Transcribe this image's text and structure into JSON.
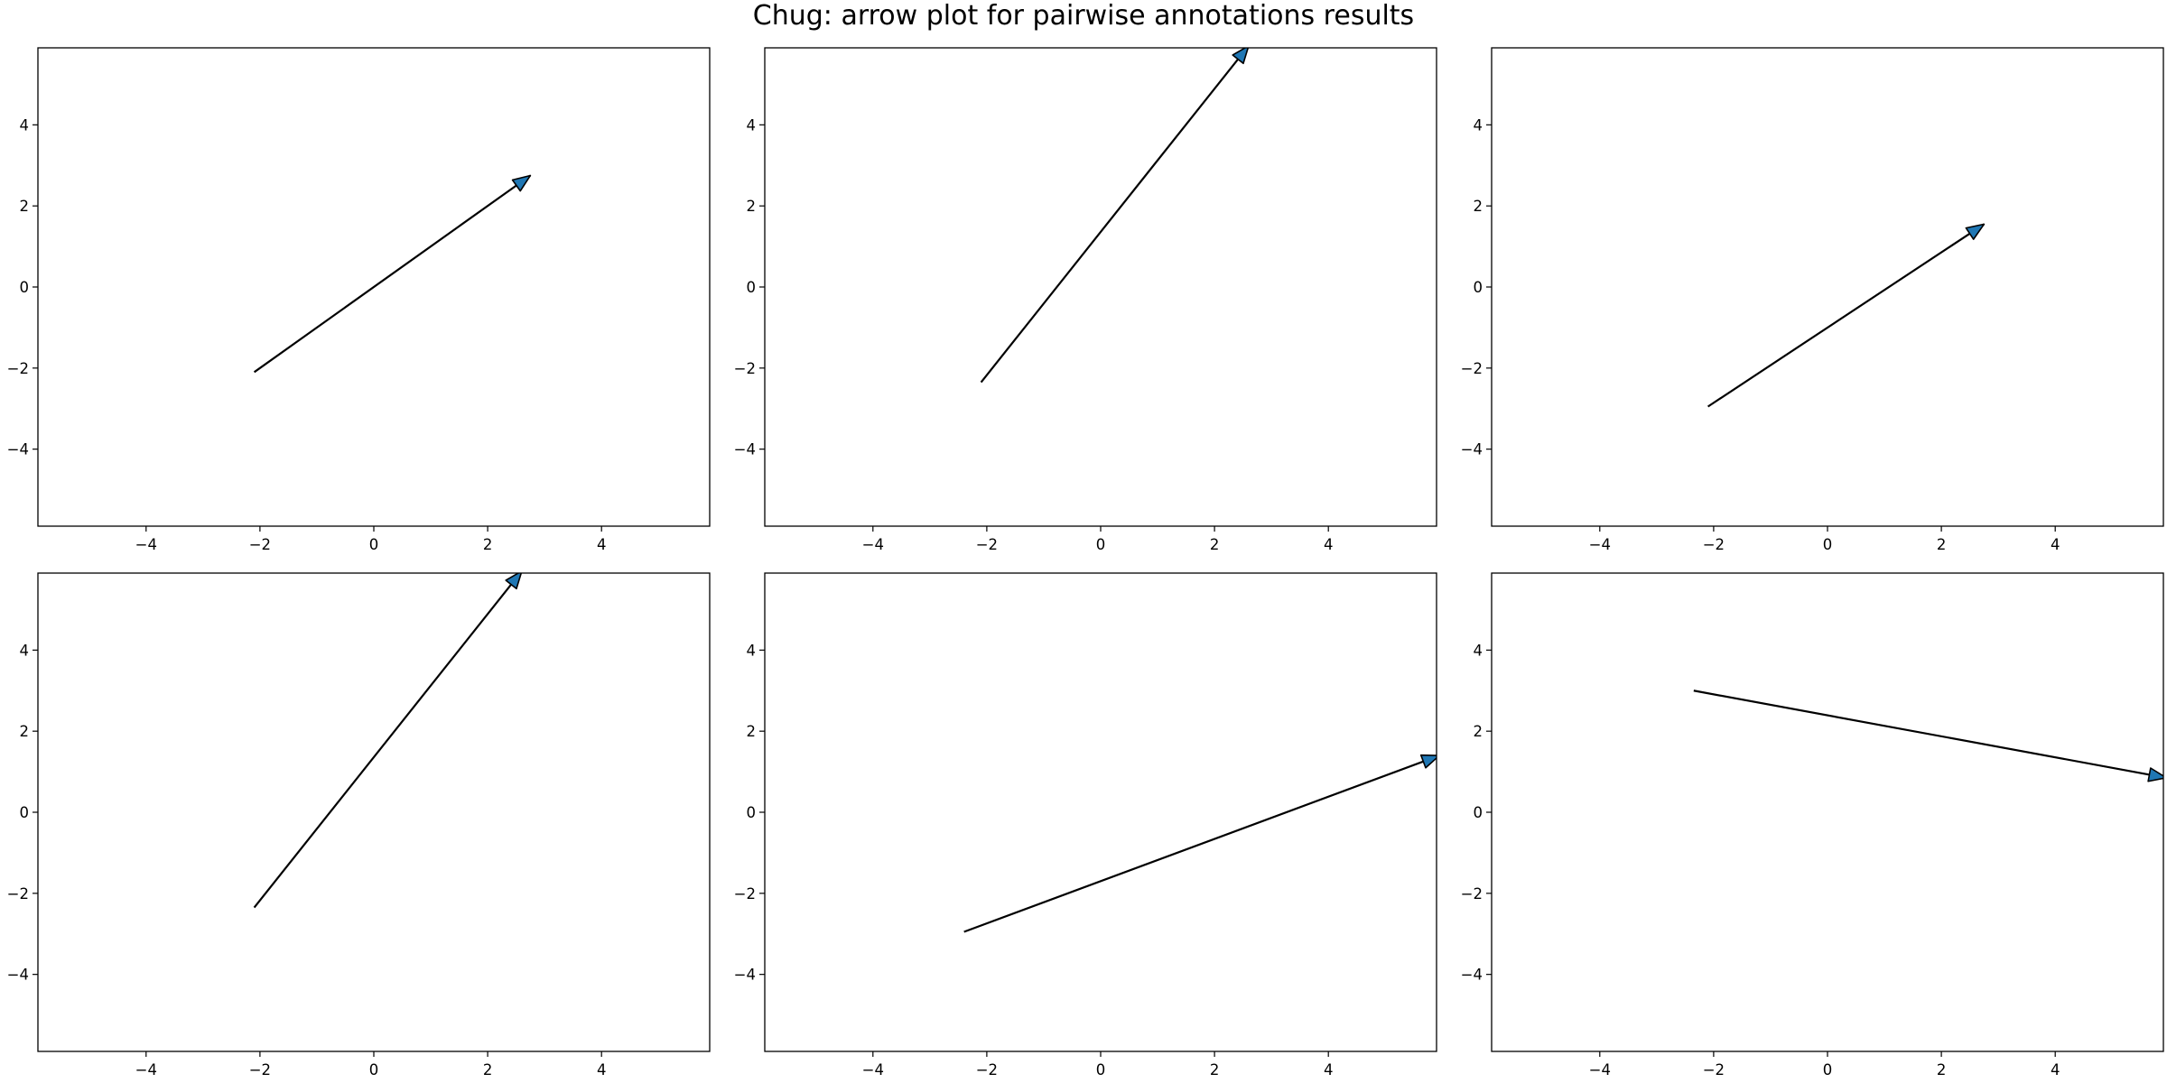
{
  "title": "Chug: arrow plot for pairwise annotations results",
  "chart_data": [
    {
      "type": "arrow",
      "title": "",
      "xlabel": "",
      "ylabel": "",
      "xlim": [
        -5.9,
        5.9
      ],
      "ylim": [
        -5.9,
        5.9
      ],
      "xticks": [
        "−4",
        "−2",
        "0",
        "2",
        "4"
      ],
      "yticks": [
        "4",
        "2",
        "0",
        "−2",
        "−4"
      ],
      "grid": false,
      "arrow": {
        "start": [
          -2.1,
          -2.1
        ],
        "end": [
          2.75,
          2.75
        ],
        "head_visible": true
      }
    },
    {
      "type": "arrow",
      "title": "",
      "xlabel": "",
      "ylabel": "",
      "xlim": [
        -5.9,
        5.9
      ],
      "ylim": [
        -5.9,
        5.9
      ],
      "xticks": [
        "−4",
        "−2",
        "0",
        "2",
        "4"
      ],
      "yticks": [
        "4",
        "2",
        "0",
        "−2",
        "−4"
      ],
      "grid": false,
      "arrow": {
        "start": [
          -2.1,
          -2.35
        ],
        "end": [
          2.6,
          5.95
        ],
        "head_visible": false
      }
    },
    {
      "type": "arrow",
      "title": "",
      "xlabel": "",
      "ylabel": "",
      "xlim": [
        -5.9,
        5.9
      ],
      "ylim": [
        -5.9,
        5.9
      ],
      "xticks": [
        "−4",
        "−2",
        "0",
        "2",
        "4"
      ],
      "yticks": [
        "4",
        "2",
        "0",
        "−2",
        "−4"
      ],
      "grid": false,
      "arrow": {
        "start": [
          -2.1,
          -2.95
        ],
        "end": [
          2.75,
          1.55
        ],
        "head_visible": true
      }
    },
    {
      "type": "arrow",
      "title": "",
      "xlabel": "",
      "ylabel": "",
      "xlim": [
        -5.9,
        5.9
      ],
      "ylim": [
        -5.9,
        5.9
      ],
      "xticks": [
        "−4",
        "−2",
        "0",
        "2",
        "4"
      ],
      "yticks": [
        "4",
        "2",
        "0",
        "−2",
        "−4"
      ],
      "grid": false,
      "arrow": {
        "start": [
          -2.1,
          -2.35
        ],
        "end": [
          2.6,
          5.95
        ],
        "head_visible": false
      }
    },
    {
      "type": "arrow",
      "title": "",
      "xlabel": "",
      "ylabel": "",
      "xlim": [
        -5.9,
        5.9
      ],
      "ylim": [
        -5.9,
        5.9
      ],
      "xticks": [
        "−4",
        "−2",
        "0",
        "2",
        "4"
      ],
      "yticks": [
        "4",
        "2",
        "0",
        "−2",
        "−4"
      ],
      "grid": false,
      "arrow": {
        "start": [
          -2.4,
          -2.95
        ],
        "end": [
          5.95,
          1.4
        ],
        "head_visible": false
      }
    },
    {
      "type": "arrow",
      "title": "",
      "xlabel": "",
      "ylabel": "",
      "xlim": [
        -5.9,
        5.9
      ],
      "ylim": [
        -5.9,
        5.9
      ],
      "xticks": [
        "−4",
        "−2",
        "0",
        "2",
        "4"
      ],
      "yticks": [
        "4",
        "2",
        "0",
        "−2",
        "−4"
      ],
      "grid": false,
      "arrow": {
        "start": [
          -2.35,
          3.0
        ],
        "end": [
          5.95,
          0.85
        ],
        "head_visible": false
      }
    }
  ],
  "colors": {
    "arrow_head": "#1f77b4",
    "line": "#000000",
    "axes": "#000000"
  }
}
